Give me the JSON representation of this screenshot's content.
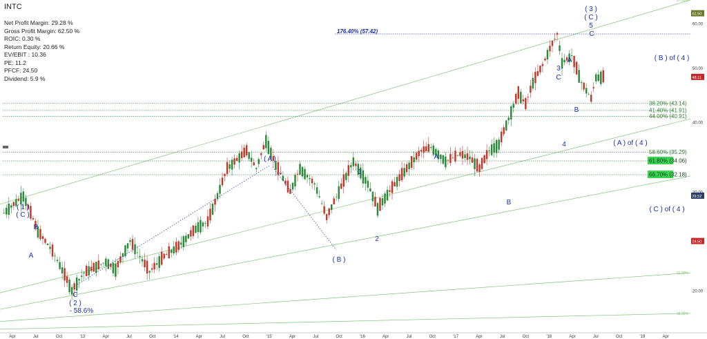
{
  "ticker": "INTC",
  "stats": [
    "Net Profit Margin: 29.28 %",
    "Gross Profit Margin: 62.50 %",
    "ROIC: 0.30 %",
    "Return Equity: 20.66 %",
    "EV/EBIT : 10.36",
    "PE: 11.2",
    "PFCF: 24.50",
    "Dividend: 5.9 %"
  ],
  "colors": {
    "up": "#2a8a3a",
    "down": "#c0392b",
    "wave_label": "#1a2fb0",
    "fib_green": "#2e7d32",
    "channel": "#7cc576",
    "grid_text": "#333333",
    "highlight_green": "#39d353",
    "price_red": "#c62828",
    "price_navy": "#2c3e64",
    "top_badge": "#6b7a2a"
  },
  "chart_data": {
    "type": "candlestick",
    "y_scale": "log",
    "ylim": [
      16.8,
      66
    ],
    "y_ticks": [
      {
        "value": 20,
        "label": "20.00"
      },
      {
        "value": 30,
        "label": "30.00"
      },
      {
        "value": 40,
        "label": "40.00"
      },
      {
        "value": 50,
        "label": "50.00"
      },
      {
        "value": 60,
        "label": "60.00"
      }
    ],
    "x_ticks": [
      "Apr",
      "Jul",
      "Oct",
      "'13",
      "Apr",
      "Jul",
      "Oct",
      "'14",
      "Apr",
      "Jul",
      "Oct",
      "'15",
      "Apr",
      "Jul",
      "Oct",
      "'16",
      "Apr",
      "Jul",
      "Oct",
      "'17",
      "Apr",
      "Jul",
      "Oct",
      "'18",
      "Apr",
      "Jul",
      "Oct",
      "'19",
      "Apr"
    ],
    "price_anchors": [
      [
        0,
        27.5
      ],
      [
        8,
        29.5
      ],
      [
        14,
        25.5
      ],
      [
        20,
        23.5
      ],
      [
        28,
        20
      ],
      [
        33,
        21.5
      ],
      [
        42,
        22.5
      ],
      [
        46,
        21.8
      ],
      [
        52,
        24.5
      ],
      [
        56,
        23.0
      ],
      [
        60,
        21.6
      ],
      [
        66,
        23.0
      ],
      [
        72,
        24.0
      ],
      [
        80,
        26.0
      ],
      [
        84,
        26.5
      ],
      [
        88,
        29.5
      ],
      [
        92,
        33.0
      ],
      [
        100,
        35.5
      ],
      [
        104,
        33.0
      ],
      [
        108,
        37.0
      ],
      [
        112,
        33.5
      ],
      [
        118,
        30.0
      ],
      [
        122,
        33.0
      ],
      [
        128,
        31.0
      ],
      [
        133,
        27.0
      ],
      [
        138,
        30.0
      ],
      [
        144,
        34.0
      ],
      [
        150,
        31.0
      ],
      [
        154,
        28.0
      ],
      [
        160,
        30.5
      ],
      [
        166,
        33.0
      ],
      [
        172,
        35.5
      ],
      [
        176,
        36.0
      ],
      [
        182,
        34.0
      ],
      [
        188,
        35.0
      ],
      [
        192,
        34.5
      ],
      [
        196,
        33.0
      ],
      [
        200,
        35.5
      ],
      [
        204,
        36.5
      ],
      [
        208,
        40.5
      ],
      [
        212,
        45.0
      ],
      [
        215,
        43.0
      ],
      [
        218,
        47.0
      ],
      [
        222,
        50.5
      ],
      [
        225,
        54.0
      ],
      [
        228,
        57.4
      ],
      [
        230,
        51.0
      ],
      [
        234,
        52.5
      ],
      [
        238,
        47.0
      ],
      [
        242,
        44.0
      ],
      [
        244,
        48.0
      ],
      [
        247,
        48.11
      ]
    ],
    "last_price": 48.11,
    "price_markers": [
      {
        "value": 62.5,
        "label": "62.50",
        "color": "top_badge"
      },
      {
        "value": 48.11,
        "label": "48.11",
        "color": "price_red"
      },
      {
        "value": 29.52,
        "label": "29.52",
        "color": "price_navy"
      },
      {
        "value": 24.5,
        "label": "24.50",
        "color": "price_red"
      }
    ],
    "fib_levels": [
      {
        "value": 43.14,
        "label": "38.20% (43.14)",
        "highlight": false
      },
      {
        "value": 41.91,
        "label": "41.40% (41.91)",
        "highlight": false
      },
      {
        "value": 40.91,
        "label": "44.00% (40.91)",
        "highlight": false
      },
      {
        "value": 35.29,
        "label": "58.60% (35.29)",
        "highlight": false
      },
      {
        "value": 34.06,
        "label": "61.80% (34.06)",
        "highlight": true
      },
      {
        "value": 32.18,
        "label": "66.70% (32.18)",
        "highlight": true
      }
    ],
    "extension_level": {
      "value": 57.42,
      "label": "176.40% (57.42)"
    },
    "channel_labels": [
      "97.00%",
      "92.00%",
      "98.00%"
    ],
    "wave_labels": [
      "( 1 )",
      "( C )",
      "B",
      "A",
      "C",
      "( 2 )",
      "- 58.6%",
      "( A )",
      "( B )",
      "1",
      "2",
      "A",
      "B",
      "3",
      "C",
      "A",
      "B",
      "4",
      "( 3 )",
      "( C )",
      "5",
      "C",
      "( B ) of ( 4 )",
      "( A ) of ( 4 )",
      "( C ) of ( 4 )"
    ]
  }
}
